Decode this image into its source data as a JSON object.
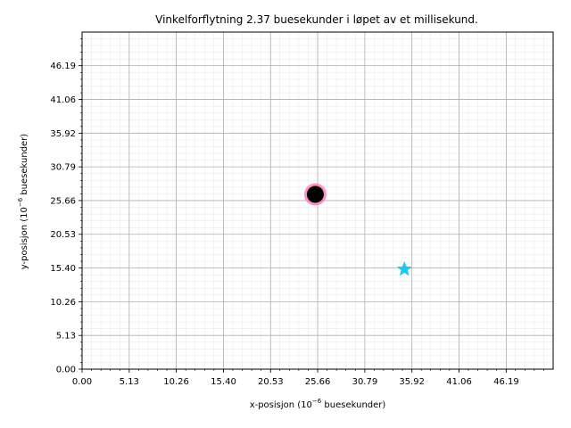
{
  "chart_data": {
    "type": "scatter",
    "title": "Vinkelforflytning 2.37 buesekunder i løpet av et millisekund.",
    "xlabel_prefix": "x-posisjon (10",
    "xlabel_exp": "−6",
    "xlabel_suffix": " buesekunder)",
    "ylabel_prefix": "y-posisjon (10",
    "ylabel_exp": "−6",
    "ylabel_suffix": " buesekunder)",
    "xlim": [
      0,
      51.3
    ],
    "ylim": [
      0,
      51.3
    ],
    "xticks": [
      0.0,
      5.13,
      10.26,
      15.4,
      20.53,
      25.66,
      30.79,
      35.92,
      41.06,
      46.19
    ],
    "xtick_labels": [
      "0.00",
      "5.13",
      "10.26",
      "15.40",
      "20.53",
      "25.66",
      "30.79",
      "35.92",
      "41.06",
      "46.19"
    ],
    "yticks": [
      0.0,
      5.13,
      10.26,
      15.4,
      20.53,
      25.66,
      30.79,
      35.92,
      41.06,
      46.19
    ],
    "ytick_labels": [
      "0.00",
      "5.13",
      "10.26",
      "15.40",
      "20.53",
      "25.66",
      "30.79",
      "35.92",
      "41.06",
      "46.19"
    ],
    "minor_per_major": 5,
    "grid": true,
    "series": [
      {
        "marker": "circle",
        "x": 25.4,
        "y": 26.6,
        "color": "#000000",
        "halo_color": "#ff7fbf"
      },
      {
        "marker": "star",
        "x": 35.1,
        "y": 15.2,
        "color": "#1ec8f0"
      }
    ]
  }
}
